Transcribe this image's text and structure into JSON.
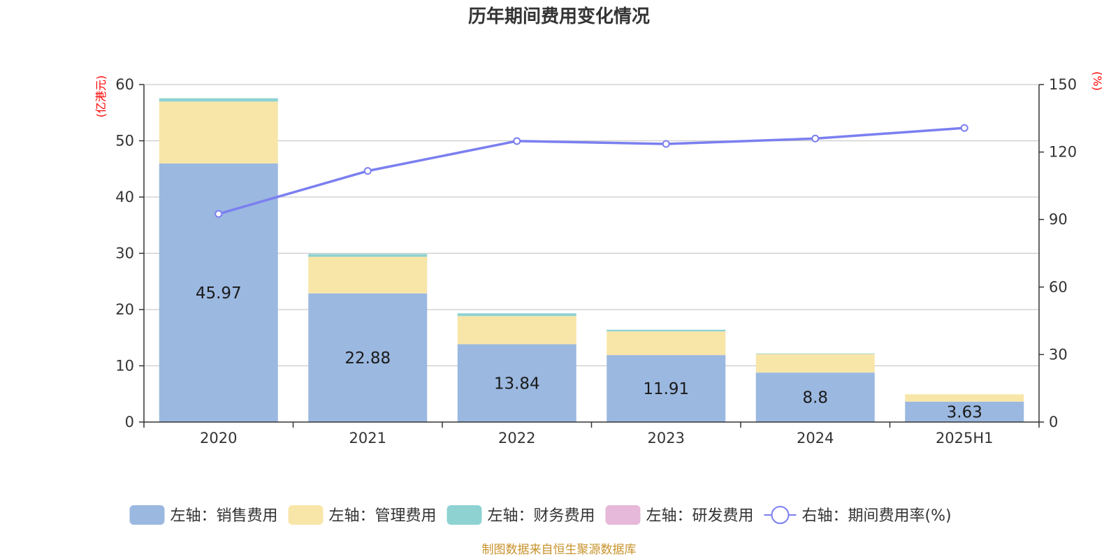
{
  "chart_data": {
    "type": "bar",
    "stacked": true,
    "title": "历年期间费用变化情况",
    "categories": [
      "2020",
      "2021",
      "2022",
      "2023",
      "2024",
      "2025H1"
    ],
    "left_axis": {
      "unit_label": "(亿港元)",
      "ylim": [
        0,
        60
      ],
      "ticks": [
        0,
        10,
        20,
        30,
        40,
        50,
        60
      ]
    },
    "right_axis": {
      "unit_label": "(%)",
      "ylim": [
        0,
        150
      ],
      "ticks": [
        0,
        30,
        60,
        90,
        120,
        150
      ]
    },
    "series": [
      {
        "name": "左轴：销售费用",
        "axis": "left",
        "type": "bar",
        "color": "#9bb8e0",
        "values": [
          45.97,
          22.88,
          13.84,
          11.91,
          8.8,
          3.63
        ],
        "show_labels": true
      },
      {
        "name": "左轴：管理费用",
        "axis": "left",
        "type": "bar",
        "color": "#f8e6a9",
        "values": [
          11.0,
          6.5,
          5.0,
          4.2,
          3.3,
          1.3
        ],
        "show_labels": false
      },
      {
        "name": "左轴：财务费用",
        "axis": "left",
        "type": "bar",
        "color": "#8fd2d2",
        "values": [
          0.6,
          0.5,
          0.5,
          0.3,
          0.1,
          0.0
        ],
        "show_labels": false
      },
      {
        "name": "左轴：研发费用",
        "axis": "left",
        "type": "bar",
        "color": "#e6b8d9",
        "values": [
          0,
          0,
          0,
          0,
          0,
          0
        ],
        "show_labels": false
      },
      {
        "name": "右轴：期间费用率(%)",
        "axis": "right",
        "type": "line",
        "color": "#7b7ff0",
        "values": [
          92.5,
          111.6,
          124.9,
          123.6,
          126.0,
          130.7
        ]
      }
    ],
    "grid": true,
    "legend_position": "bottom"
  },
  "source_note": "制图数据来自恒生聚源数据库",
  "colors": {
    "source_note": "#c8922a",
    "axis_unit": "#ff0000",
    "grid": "#cccccc",
    "axis": "#333333"
  }
}
